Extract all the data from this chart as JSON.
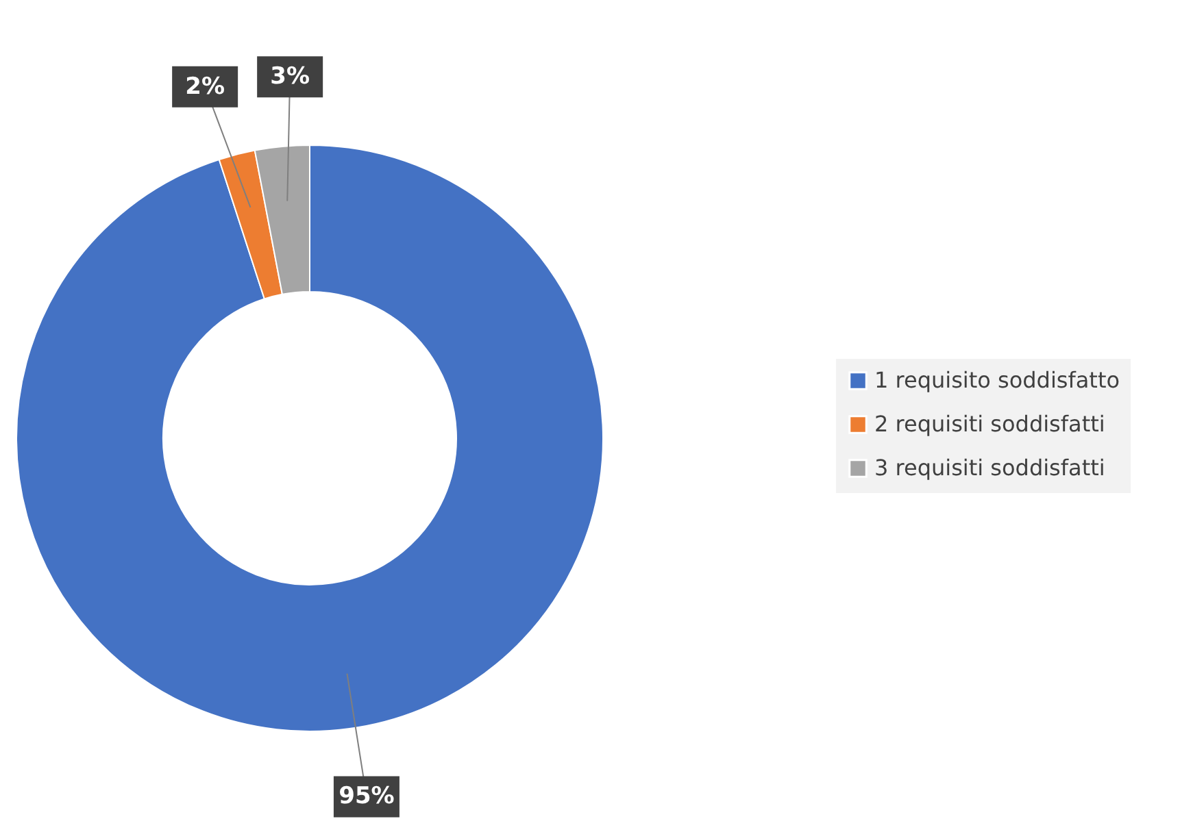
{
  "chart_data": {
    "type": "donut",
    "categories": [
      "1 requisito soddisfatto",
      "2 requisiti soddisfatti",
      "3 requisiti soddisfatti"
    ],
    "values": [
      95,
      2,
      3
    ],
    "colors": [
      "#4472c4",
      "#ed7d31",
      "#a5a5a5"
    ],
    "value_labels": [
      "95%",
      "2%",
      "3%"
    ],
    "legend": "right"
  }
}
